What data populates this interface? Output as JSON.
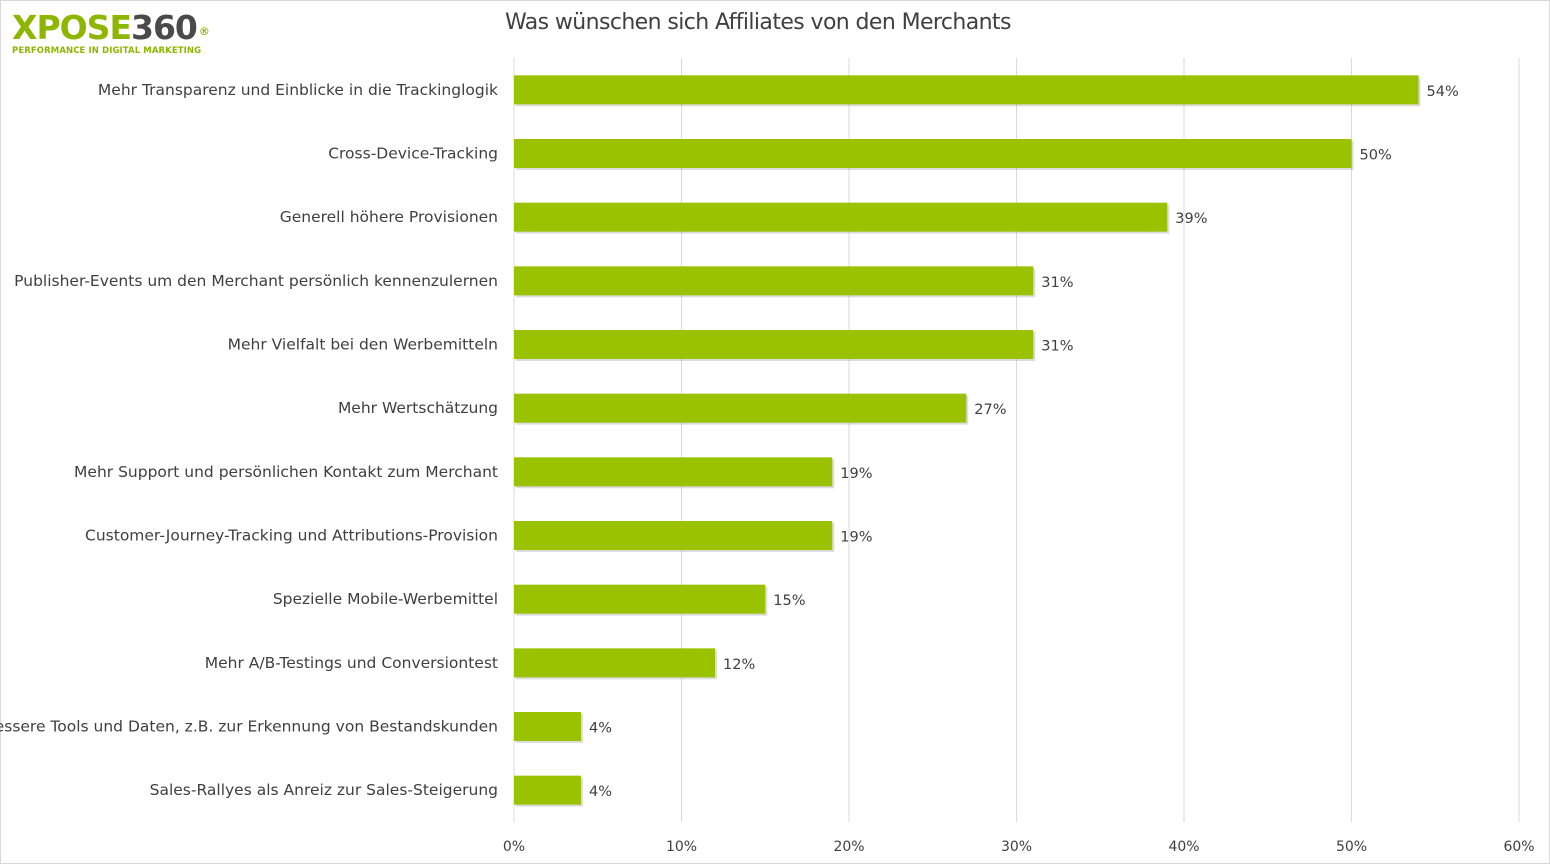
{
  "logo": {
    "brand_left": "XPOSE",
    "brand_right": "360",
    "registered": "®",
    "tagline": "PERFORMANCE IN DIGITAL MARKETING"
  },
  "colors": {
    "bar": "#9bc200",
    "brand_green": "#8db600",
    "text": "#404040",
    "grid": "#d9d9d9"
  },
  "chart_data": {
    "type": "bar",
    "orientation": "horizontal",
    "title": "Was wünschen sich Affiliates von den Merchants",
    "xlabel": "",
    "ylabel": "",
    "xlim": [
      0,
      60
    ],
    "x_ticks": [
      "0%",
      "10%",
      "20%",
      "30%",
      "40%",
      "50%",
      "60%"
    ],
    "grid": "vertical",
    "legend": "none",
    "categories": [
      "Mehr Transparenz und Einblicke in die Trackinglogik",
      "Cross-Device-Tracking",
      "Generell höhere Provisionen",
      "Publisher-Events um den Merchant persönlich kennenzulernen",
      "Mehr Vielfalt bei den Werbemitteln",
      "Mehr Wertschätzung",
      "Mehr Support und persönlichen Kontakt zum Merchant",
      "Customer-Journey-Tracking und Attributions-Provision",
      "Spezielle Mobile-Werbemittel",
      "Mehr A/B-Testings und Conversiontest",
      "Bessere Tools und Daten, z.B. zur Erkennung von Bestandskunden",
      "Sales-Rallyes als Anreiz zur Sales-Steigerung"
    ],
    "values": [
      54,
      50,
      39,
      31,
      31,
      27,
      19,
      19,
      15,
      12,
      4,
      4
    ],
    "value_labels": [
      "54%",
      "50%",
      "39%",
      "31%",
      "31%",
      "27%",
      "19%",
      "19%",
      "15%",
      "12%",
      "4%",
      "4%"
    ]
  }
}
